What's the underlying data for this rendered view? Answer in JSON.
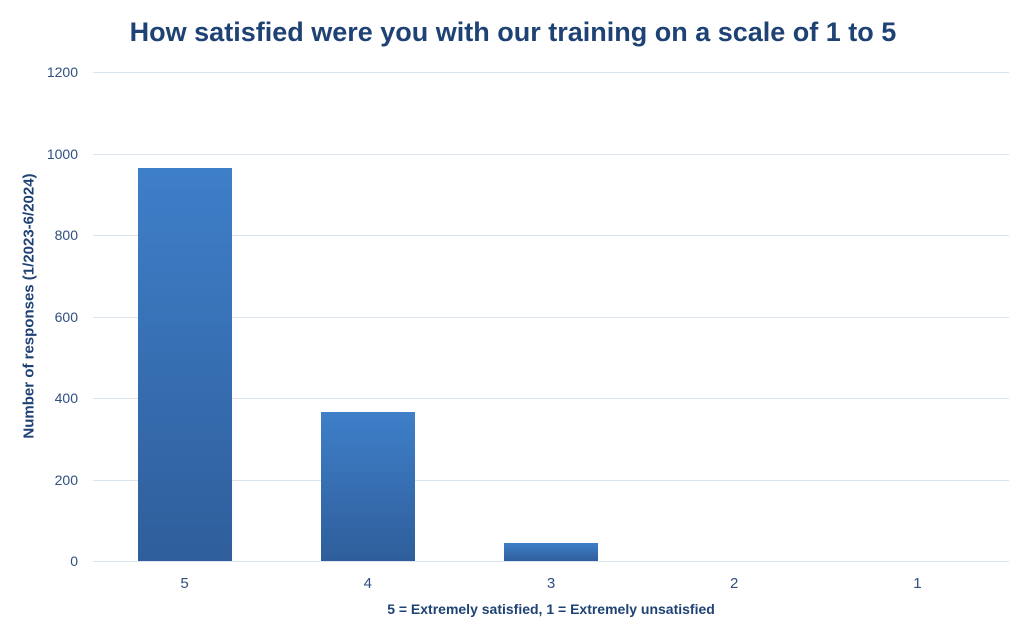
{
  "chart_data": {
    "type": "bar",
    "title": "How satisfied were you with our training on a scale of 1 to 5",
    "categories": [
      "5",
      "4",
      "3",
      "2",
      "1"
    ],
    "values": [
      965,
      365,
      45,
      0,
      0
    ],
    "series": [
      {
        "name": "Number of responses",
        "values": [
          965,
          365,
          45,
          0,
          0
        ]
      }
    ],
    "xlabel": "5 = Extremely satisfied, 1 = Extremely unsatisfied",
    "ylabel": "Number of responses (1/2023-6/2024)",
    "ylim": [
      0,
      1200
    ],
    "ytick_step": 200,
    "yticks": [
      0,
      200,
      400,
      600,
      800,
      1000,
      1200
    ],
    "grid": true,
    "legend_position": "none",
    "colors": {
      "bar_gradient_top": "#3E7FC9",
      "bar_gradient_bottom": "#2F5E9B",
      "gridline": "#DCE5EF",
      "title_text": "#1E4273",
      "axis_title_text": "#1E4273",
      "tick_text": "#2F4F7F",
      "background": "#FFFFFF"
    }
  }
}
